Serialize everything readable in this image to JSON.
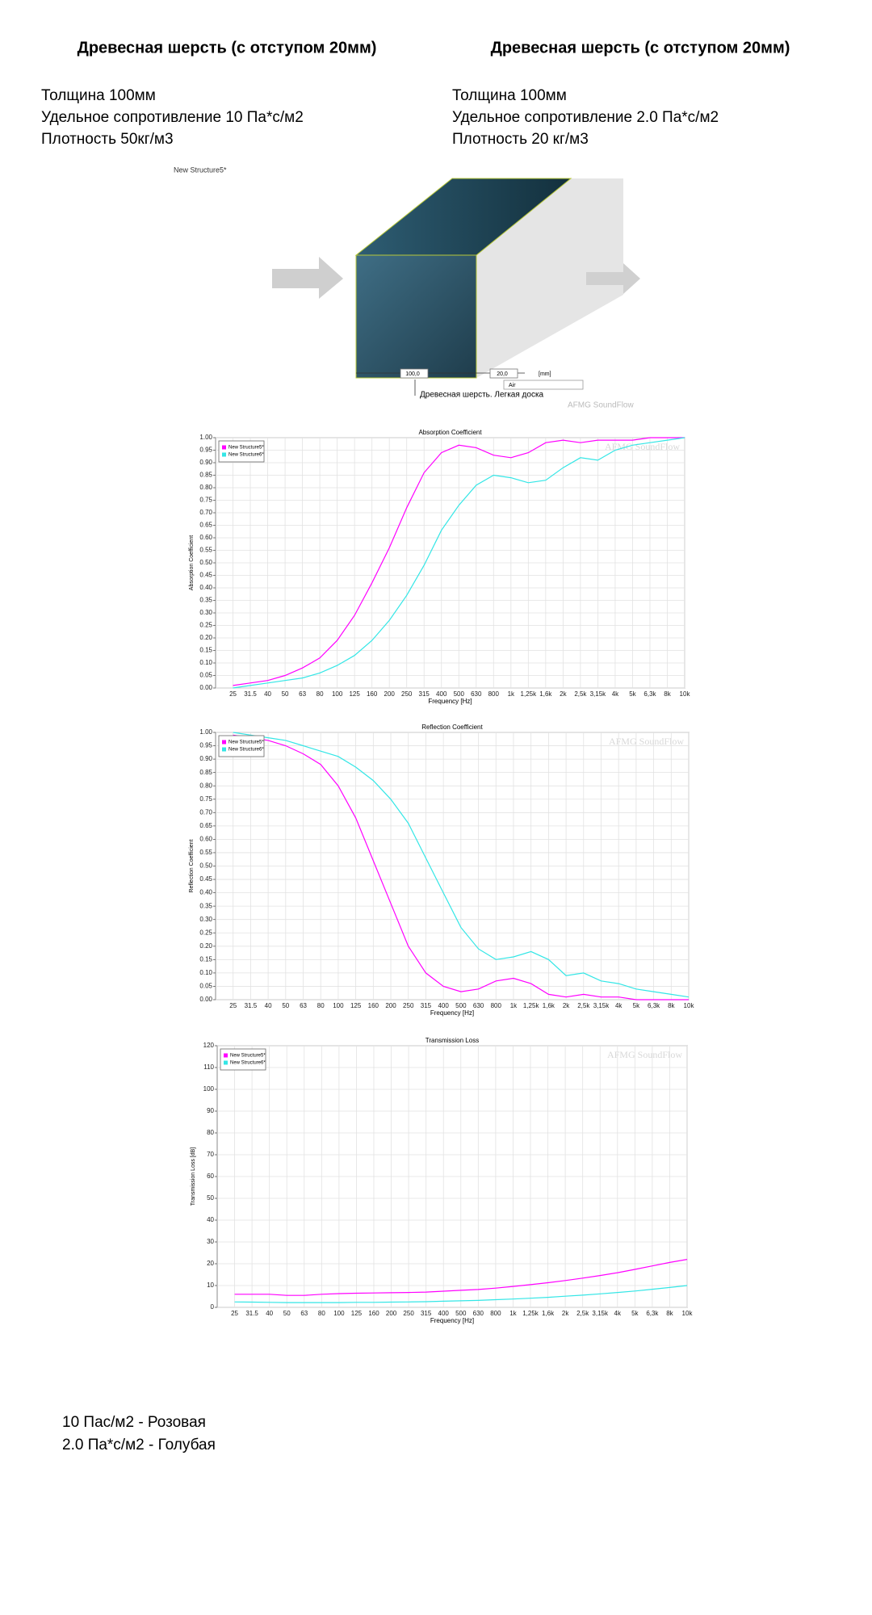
{
  "columns": [
    {
      "title": "Древесная шерсть (с отступом 20мм)",
      "lines": [
        "Толщина 100мм",
        "Удельное сопротивление 10 Па*с/м2",
        "Плотность 50кг/м3"
      ]
    },
    {
      "title": "Древесная шерсть (с отступом 20мм)",
      "lines": [
        "Толщина 100мм",
        "Удельное сопротивление 2.0 Па*с/м2",
        "Плотность 20 кг/м3"
      ]
    }
  ],
  "diagram": {
    "name": "New Structure5*",
    "thickness": "100,0",
    "gap": "20,0",
    "unit": "[mm]",
    "gap_material": "Air",
    "material": "Древесная шерсть. Легкая доска",
    "watermark": "AFMG SoundFlow"
  },
  "chart_data": [
    {
      "type": "line",
      "title": "Absorption Coefficient",
      "x_label": "Frequency [Hz]",
      "y_label": "Absorption Coefficient",
      "watermark": "AFMG SoundFlow",
      "grid": true,
      "legend": "top-left",
      "categories": [
        "25",
        "31.5",
        "40",
        "50",
        "63",
        "80",
        "100",
        "125",
        "160",
        "200",
        "250",
        "315",
        "400",
        "500",
        "630",
        "800",
        "1k",
        "1,25k",
        "1,6k",
        "2k",
        "2,5k",
        "3,15k",
        "4k",
        "5k",
        "6,3k",
        "8k",
        "10k"
      ],
      "ylim": [
        0,
        1
      ],
      "yticks": [
        {
          "value": 0,
          "label": "0.00"
        },
        {
          "value": 0.05,
          "label": "0.05"
        },
        {
          "value": 0.1,
          "label": "0.10"
        },
        {
          "value": 0.15,
          "label": "0.15"
        },
        {
          "value": 0.2,
          "label": "0.20"
        },
        {
          "value": 0.25,
          "label": "0.25"
        },
        {
          "value": 0.3,
          "label": "0.30"
        },
        {
          "value": 0.35,
          "label": "0.35"
        },
        {
          "value": 0.4,
          "label": "0.40"
        },
        {
          "value": 0.45,
          "label": "0.45"
        },
        {
          "value": 0.5,
          "label": "0.50"
        },
        {
          "value": 0.55,
          "label": "0.55"
        },
        {
          "value": 0.6,
          "label": "0.60"
        },
        {
          "value": 0.65,
          "label": "0.65"
        },
        {
          "value": 0.7,
          "label": "0.70"
        },
        {
          "value": 0.75,
          "label": "0.75"
        },
        {
          "value": 0.8,
          "label": "0.80"
        },
        {
          "value": 0.85,
          "label": "0.85"
        },
        {
          "value": 0.9,
          "label": "0.90"
        },
        {
          "value": 0.95,
          "label": "0.95"
        },
        {
          "value": 1,
          "label": "1.00"
        }
      ],
      "series": [
        {
          "name": "New Structure5*",
          "color": "#ff00ff",
          "values": [
            0.01,
            0.02,
            0.03,
            0.05,
            0.08,
            0.12,
            0.19,
            0.29,
            0.42,
            0.56,
            0.72,
            0.86,
            0.94,
            0.97,
            0.96,
            0.93,
            0.92,
            0.94,
            0.98,
            0.99,
            0.98,
            0.99,
            0.99,
            0.99,
            1.0,
            1.0,
            1.0
          ]
        },
        {
          "name": "New Structure6*",
          "color": "#33e6e6",
          "values": [
            0.0,
            0.01,
            0.02,
            0.03,
            0.04,
            0.06,
            0.09,
            0.13,
            0.19,
            0.27,
            0.37,
            0.49,
            0.63,
            0.73,
            0.81,
            0.85,
            0.84,
            0.82,
            0.83,
            0.88,
            0.92,
            0.91,
            0.95,
            0.97,
            0.98,
            0.99,
            1.0
          ]
        }
      ]
    },
    {
      "type": "line",
      "title": "Reflection Coefficient",
      "x_label": "Frequency [Hz]",
      "y_label": "Reflection Coefficient",
      "watermark": "AFMG SoundFlow",
      "grid": true,
      "legend": "top-left",
      "categories": [
        "25",
        "31.5",
        "40",
        "50",
        "63",
        "80",
        "100",
        "125",
        "160",
        "200",
        "250",
        "315",
        "400",
        "500",
        "630",
        "800",
        "1k",
        "1,25k",
        "1,6k",
        "2k",
        "2,5k",
        "3,15k",
        "4k",
        "5k",
        "6,3k",
        "8k",
        "10k"
      ],
      "ylim": [
        0,
        1
      ],
      "yticks": [
        {
          "value": 0,
          "label": "0.00"
        },
        {
          "value": 0.05,
          "label": "0.05"
        },
        {
          "value": 0.1,
          "label": "0.10"
        },
        {
          "value": 0.15,
          "label": "0.15"
        },
        {
          "value": 0.2,
          "label": "0.20"
        },
        {
          "value": 0.25,
          "label": "0.25"
        },
        {
          "value": 0.3,
          "label": "0.30"
        },
        {
          "value": 0.35,
          "label": "0.35"
        },
        {
          "value": 0.4,
          "label": "0.40"
        },
        {
          "value": 0.45,
          "label": "0.45"
        },
        {
          "value": 0.5,
          "label": "0.50"
        },
        {
          "value": 0.55,
          "label": "0.55"
        },
        {
          "value": 0.6,
          "label": "0.60"
        },
        {
          "value": 0.65,
          "label": "0.65"
        },
        {
          "value": 0.7,
          "label": "0.70"
        },
        {
          "value": 0.75,
          "label": "0.75"
        },
        {
          "value": 0.8,
          "label": "0.80"
        },
        {
          "value": 0.85,
          "label": "0.85"
        },
        {
          "value": 0.9,
          "label": "0.90"
        },
        {
          "value": 0.95,
          "label": "0.95"
        },
        {
          "value": 1,
          "label": "1.00"
        }
      ],
      "series": [
        {
          "name": "New Structure5*",
          "color": "#ff00ff",
          "values": [
            0.99,
            0.98,
            0.97,
            0.95,
            0.92,
            0.88,
            0.8,
            0.68,
            0.52,
            0.36,
            0.2,
            0.1,
            0.05,
            0.03,
            0.04,
            0.07,
            0.08,
            0.06,
            0.02,
            0.01,
            0.02,
            0.01,
            0.01,
            0.0,
            0.0,
            0.0,
            0.0
          ]
        },
        {
          "name": "New Structure6*",
          "color": "#33e6e6",
          "values": [
            1.0,
            0.99,
            0.98,
            0.97,
            0.95,
            0.93,
            0.91,
            0.87,
            0.82,
            0.75,
            0.66,
            0.53,
            0.4,
            0.27,
            0.19,
            0.15,
            0.16,
            0.18,
            0.15,
            0.09,
            0.1,
            0.07,
            0.06,
            0.04,
            0.03,
            0.02,
            0.01
          ]
        }
      ]
    },
    {
      "type": "line",
      "title": "Transmission Loss",
      "x_label": "Frequency [Hz]",
      "y_label": "Transmission Loss [dB]",
      "watermark": "AFMG SoundFlow",
      "grid": true,
      "legend": "top-left",
      "categories": [
        "25",
        "31.5",
        "40",
        "50",
        "63",
        "80",
        "100",
        "125",
        "160",
        "200",
        "250",
        "315",
        "400",
        "500",
        "630",
        "800",
        "1k",
        "1,25k",
        "1,6k",
        "2k",
        "2,5k",
        "3,15k",
        "4k",
        "5k",
        "6,3k",
        "8k",
        "10k"
      ],
      "ylim": [
        0,
        120
      ],
      "yticks": [
        0,
        10,
        20,
        30,
        40,
        50,
        60,
        70,
        80,
        90,
        100,
        110,
        120
      ],
      "series": [
        {
          "name": "New Structure5*",
          "color": "#ff00ff",
          "values": [
            6,
            6,
            6,
            5.5,
            5.5,
            6,
            6.3,
            6.5,
            6.6,
            6.7,
            6.8,
            7,
            7.4,
            7.8,
            8.2,
            8.8,
            9.6,
            10.4,
            11.3,
            12.3,
            13.4,
            14.6,
            15.9,
            17.4,
            19,
            20.6,
            22
          ]
        },
        {
          "name": "New Structure6*",
          "color": "#33e6e6",
          "values": [
            2.5,
            2.4,
            2.3,
            2.2,
            2.2,
            2.2,
            2.2,
            2.3,
            2.3,
            2.4,
            2.5,
            2.6,
            2.8,
            3,
            3.2,
            3.5,
            3.8,
            4.2,
            4.6,
            5.1,
            5.6,
            6.2,
            6.8,
            7.5,
            8.3,
            9.1,
            10
          ]
        }
      ]
    }
  ],
  "notes": [
    "10 Пас/м2 - Розовая",
    "2.0 Па*с/м2 - Голубая"
  ]
}
